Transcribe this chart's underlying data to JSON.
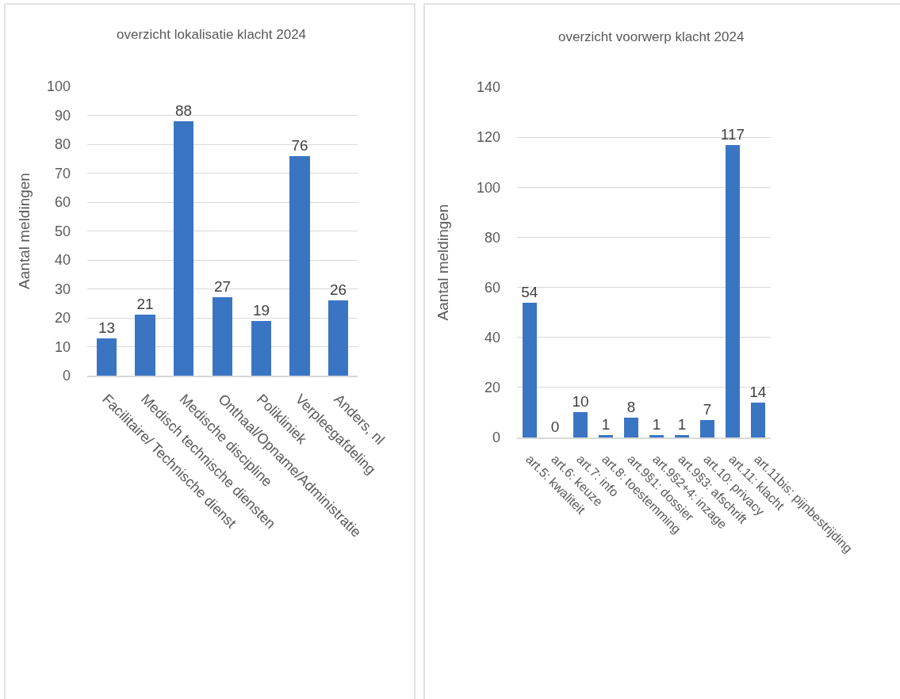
{
  "chart_data": [
    {
      "type": "bar",
      "title": "overzicht lokalisatie klacht 2024",
      "ylabel": "Aantal meldingen",
      "categories": [
        "Facilitaire/ Technische dienst",
        "Medisch technische diensten",
        "Medische discipline",
        "Onthaal/Opname/Administratie",
        "Polikliniek",
        "Verpleegafdeling",
        "Anders, nl"
      ],
      "values": [
        13,
        21,
        88,
        27,
        19,
        76,
        26
      ],
      "color": "#3a75c4",
      "ylim": [
        0,
        100
      ],
      "yticks": [
        0,
        10,
        20,
        30,
        40,
        50,
        60,
        70,
        80,
        90,
        100
      ],
      "grid": "y",
      "data_labels": true
    },
    {
      "type": "bar",
      "title": "overzicht voorwerp klacht 2024",
      "ylabel": "Aantal meldingen",
      "categories": [
        "art.5: kwaliteit",
        "art.6: keuze",
        "art.7: info",
        "art.8: toestemming",
        "art.9§1: dossier",
        "art.9§2+4: inzage",
        "art.9§3: afschrift",
        "art.10: privacy",
        "art.11: klacht",
        "art.11bis: pijnbestrijding"
      ],
      "values": [
        54,
        0,
        10,
        1,
        8,
        1,
        1,
        7,
        117,
        14
      ],
      "color": "#3a75c4",
      "ylim": [
        0,
        140
      ],
      "yticks": [
        0,
        20,
        40,
        60,
        80,
        100,
        120,
        140
      ],
      "grid": "y",
      "data_labels": true
    }
  ]
}
